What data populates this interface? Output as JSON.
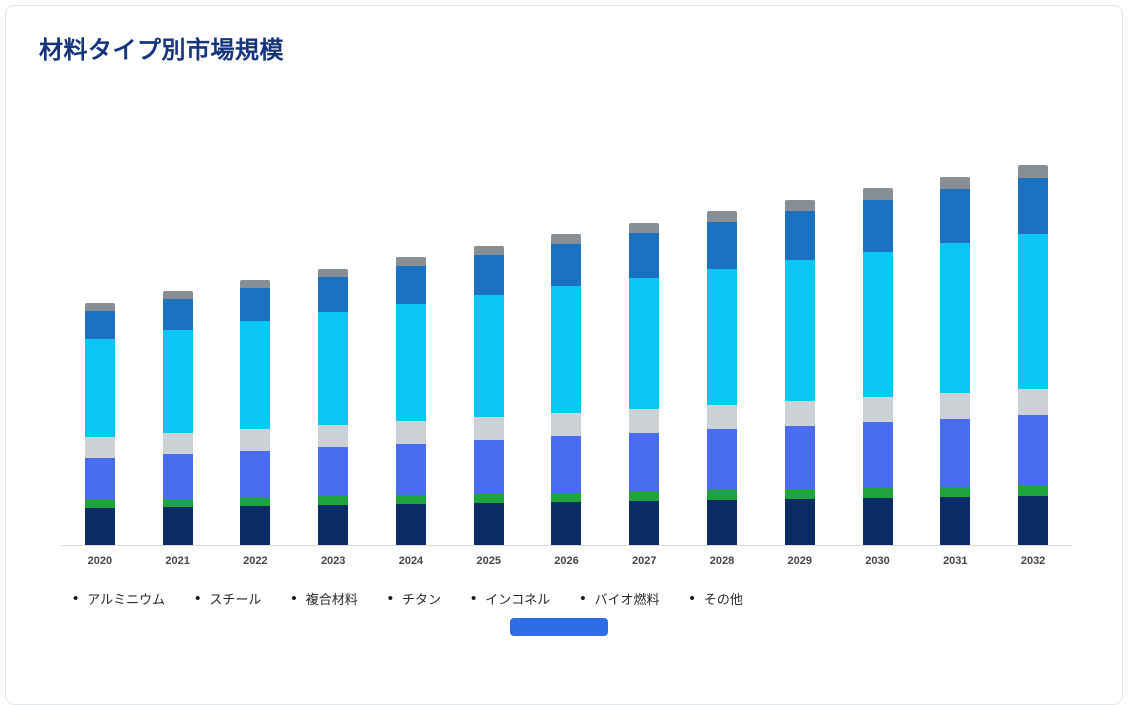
{
  "page": {
    "title": "材料タイプ別市場規模"
  },
  "colors": {
    "title": "#17357d",
    "axis_label": "#40474d",
    "baseline": "#d9dcdf",
    "accent_button": "#2f6ce8",
    "card_border": "#e3e6ea"
  },
  "legend_bullet": "•",
  "chart_data": {
    "type": "bar",
    "stacked": true,
    "title": "材料タイプ別市場規模",
    "xlabel": "",
    "ylabel": "",
    "grid": false,
    "legend_position": "bottom",
    "categories": [
      "2020",
      "2021",
      "2022",
      "2023",
      "2024",
      "2025",
      "2026",
      "2027",
      "2028",
      "2029",
      "2030",
      "2031",
      "2032"
    ],
    "series": [
      {
        "name": "アルミニウム",
        "color": "#0a2b63",
        "values": [
          4.0,
          4.1,
          4.2,
          4.3,
          4.4,
          4.5,
          4.6,
          4.7,
          4.8,
          4.9,
          5.0,
          5.1,
          5.2
        ]
      },
      {
        "name": "スチール",
        "color": "#1da53c",
        "values": [
          0.8,
          0.83,
          0.86,
          0.89,
          0.92,
          0.95,
          0.98,
          1.0,
          1.03,
          1.06,
          1.09,
          1.12,
          1.15
        ]
      },
      {
        "name": "複合材料",
        "color": "#4a6cf0",
        "values": [
          4.5,
          4.75,
          5.0,
          5.25,
          5.5,
          5.75,
          6.0,
          6.25,
          6.5,
          6.75,
          7.0,
          7.25,
          7.5
        ]
      },
      {
        "name": "チタン",
        "color": "#ccd1d5",
        "values": [
          2.2,
          2.25,
          2.3,
          2.35,
          2.4,
          2.45,
          2.5,
          2.55,
          2.6,
          2.65,
          2.7,
          2.75,
          2.8
        ]
      },
      {
        "name": "インコネル",
        "color": "#0ac6f2",
        "values": [
          10.5,
          11.0,
          11.5,
          12.0,
          12.5,
          13.0,
          13.5,
          14.0,
          14.5,
          15.0,
          15.5,
          16.0,
          16.5
        ]
      },
      {
        "name": "バイオ燃料",
        "color": "#1b72c0",
        "values": [
          3.0,
          3.25,
          3.5,
          3.75,
          4.0,
          4.25,
          4.5,
          4.75,
          5.0,
          5.25,
          5.5,
          5.75,
          6.0
        ]
      },
      {
        "name": "その他",
        "color": "#878f94",
        "values": [
          0.8,
          0.84,
          0.88,
          0.92,
          0.96,
          1.0,
          1.05,
          1.1,
          1.15,
          1.2,
          1.25,
          1.3,
          1.35
        ]
      }
    ]
  }
}
